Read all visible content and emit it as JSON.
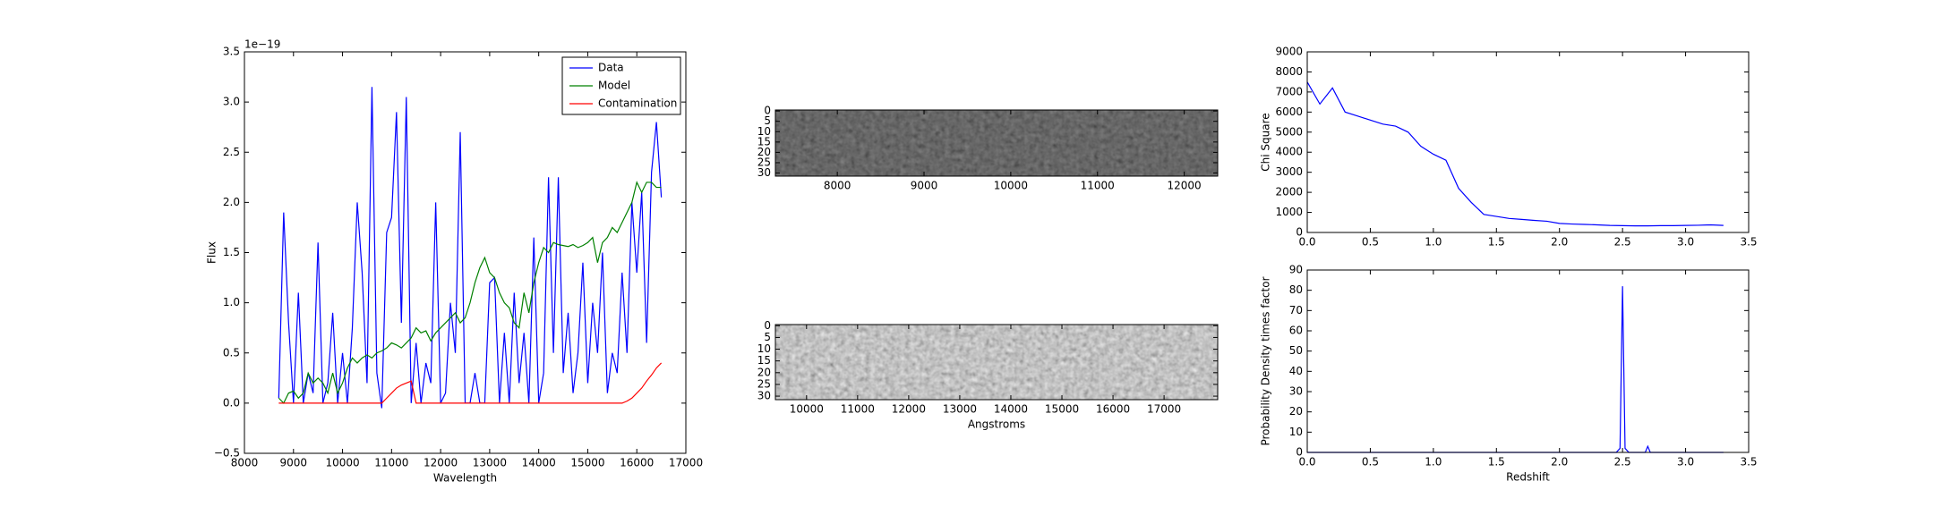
{
  "chart_data": [
    {
      "type": "line",
      "xlabel": "Wavelength",
      "ylabel": "Flux",
      "offset_text": "1e−19",
      "x": [
        8700,
        8800,
        8900,
        9000,
        9100,
        9200,
        9300,
        9400,
        9500,
        9600,
        9700,
        9800,
        9900,
        10000,
        10100,
        10200,
        10300,
        10400,
        10500,
        10600,
        10700,
        10800,
        10900,
        11000,
        11100,
        11200,
        11300,
        11400,
        11500,
        11600,
        11700,
        11800,
        11900,
        12000,
        12100,
        12200,
        12300,
        12400,
        12500,
        12600,
        12700,
        12800,
        12900,
        13000,
        13100,
        13200,
        13300,
        13400,
        13500,
        13600,
        13700,
        13800,
        13900,
        14000,
        14100,
        14200,
        14300,
        14400,
        14500,
        14600,
        14700,
        14800,
        14900,
        15000,
        15100,
        15200,
        15300,
        15400,
        15500,
        15600,
        15700,
        15800,
        15900,
        16000,
        16100,
        16200,
        16300,
        16400,
        16500
      ],
      "series": [
        {
          "name": "Data",
          "color": "#0000ff",
          "values": [
            0.05,
            1.9,
            0.8,
            0.0,
            1.1,
            0.0,
            0.3,
            0.1,
            1.6,
            0.0,
            0.2,
            0.9,
            0.0,
            0.5,
            0.0,
            0.75,
            2.0,
            1.3,
            0.2,
            3.15,
            0.3,
            -0.05,
            1.7,
            1.85,
            2.9,
            0.8,
            3.05,
            0.0,
            0.6,
            0.0,
            0.4,
            0.2,
            2.0,
            0.0,
            0.1,
            1.0,
            0.5,
            2.7,
            0.0,
            0.0,
            0.3,
            0.0,
            0.0,
            1.2,
            1.25,
            0.0,
            0.7,
            0.0,
            1.1,
            0.2,
            0.7,
            0.0,
            1.65,
            0.0,
            0.3,
            2.25,
            0.5,
            2.25,
            0.3,
            0.9,
            0.1,
            0.5,
            1.4,
            0.2,
            1.0,
            0.5,
            1.5,
            0.1,
            0.5,
            0.3,
            1.3,
            0.5,
            2.0,
            1.3,
            2.1,
            0.6,
            2.3,
            2.8,
            2.05
          ]
        },
        {
          "name": "Model",
          "color": "#008000",
          "values": [
            0.05,
            0.0,
            0.1,
            0.12,
            0.05,
            0.1,
            0.3,
            0.2,
            0.25,
            0.2,
            0.1,
            0.3,
            0.1,
            0.2,
            0.35,
            0.45,
            0.4,
            0.45,
            0.48,
            0.45,
            0.5,
            0.52,
            0.55,
            0.6,
            0.58,
            0.55,
            0.6,
            0.65,
            0.75,
            0.7,
            0.72,
            0.62,
            0.7,
            0.75,
            0.8,
            0.85,
            0.9,
            0.8,
            0.85,
            1.0,
            1.2,
            1.35,
            1.45,
            1.3,
            1.25,
            1.1,
            1.0,
            0.95,
            0.8,
            0.75,
            1.1,
            0.9,
            1.2,
            1.4,
            1.55,
            1.5,
            1.6,
            1.58,
            1.57,
            1.56,
            1.58,
            1.55,
            1.57,
            1.6,
            1.65,
            1.4,
            1.6,
            1.65,
            1.75,
            1.7,
            1.8,
            1.9,
            2.0,
            2.2,
            2.1,
            2.2,
            2.2,
            2.15,
            2.15
          ]
        },
        {
          "name": "Contamination",
          "color": "#ff0000",
          "values": [
            0,
            0,
            0,
            0,
            0,
            0,
            0,
            0,
            0,
            0,
            0,
            0,
            0,
            0,
            0,
            0,
            0,
            0,
            0,
            0,
            0,
            0,
            0.05,
            0.1,
            0.15,
            0.18,
            0.2,
            0.22,
            0,
            0,
            0,
            0,
            0,
            0,
            0,
            0,
            0,
            0,
            0,
            0,
            0,
            0,
            0,
            0,
            0,
            0,
            0,
            0,
            0,
            0,
            0,
            0,
            0,
            0,
            0,
            0,
            0,
            0,
            0,
            0,
            0,
            0,
            0,
            0,
            0,
            0,
            0,
            0,
            0,
            0,
            0,
            0.02,
            0.05,
            0.1,
            0.15,
            0.22,
            0.28,
            0.35,
            0.4
          ]
        }
      ],
      "xlim": [
        8000,
        17000
      ],
      "xticks": [
        8000,
        9000,
        10000,
        11000,
        12000,
        13000,
        14000,
        15000,
        16000,
        17000
      ],
      "ylim": [
        -0.5,
        3.5
      ],
      "yticks": [
        {
          "value": -0.5,
          "label": "−0.5"
        },
        {
          "value": 0,
          "label": "0.0"
        },
        0.5,
        {
          "value": 1,
          "label": "1.0"
        },
        1.5,
        {
          "value": 2,
          "label": "2.0"
        },
        2.5,
        {
          "value": 3,
          "label": "3.0"
        },
        3.5
      ],
      "legend": "upper right"
    },
    {
      "type": "image",
      "xlim": [
        7286,
        12386
      ],
      "xticks": [
        8000,
        9000,
        10000,
        11000,
        12000
      ],
      "ylim": [
        31.5,
        -0.5
      ],
      "yticks": [
        0,
        5,
        10,
        15,
        20,
        25,
        30
      ],
      "shade": "dark"
    },
    {
      "type": "image",
      "xlabel": "Angstroms",
      "xlim": [
        9390,
        18050
      ],
      "xticks": [
        10000,
        11000,
        12000,
        13000,
        14000,
        15000,
        16000,
        17000
      ],
      "ylim": [
        31.5,
        -0.5
      ],
      "yticks": [
        0,
        5,
        10,
        15,
        20,
        25,
        30
      ],
      "shade": "light"
    },
    {
      "type": "line",
      "ylabel": "Chi Square",
      "x": [
        0,
        0.1,
        0.2,
        0.3,
        0.4,
        0.5,
        0.6,
        0.7,
        0.8,
        0.9,
        1.0,
        1.1,
        1.2,
        1.3,
        1.4,
        1.5,
        1.6,
        1.7,
        1.8,
        1.9,
        2.0,
        2.1,
        2.2,
        2.3,
        2.4,
        2.5,
        2.6,
        2.7,
        2.8,
        2.9,
        3.0,
        3.1,
        3.2,
        3.3
      ],
      "series": [
        {
          "name": "Chi Square",
          "color": "#0000ff",
          "values": [
            7500,
            6400,
            7200,
            6000,
            5800,
            5600,
            5400,
            5300,
            5000,
            4300,
            3900,
            3600,
            2200,
            1500,
            900,
            800,
            700,
            650,
            600,
            560,
            450,
            420,
            400,
            380,
            350,
            340,
            330,
            330,
            340,
            340,
            350,
            360,
            380,
            350
          ]
        }
      ],
      "xlim": [
        0,
        3.5
      ],
      "xticks": [
        {
          "value": 0,
          "label": "0.0"
        },
        0.5,
        {
          "value": 1,
          "label": "1.0"
        },
        1.5,
        {
          "value": 2,
          "label": "2.0"
        },
        2.5,
        {
          "value": 3,
          "label": "3.0"
        },
        3.5
      ],
      "ylim": [
        0,
        9000
      ],
      "yticks": [
        0,
        1000,
        2000,
        3000,
        4000,
        5000,
        6000,
        7000,
        8000,
        9000
      ]
    },
    {
      "type": "line",
      "xlabel": "Redshift",
      "ylabel": "Probability Density times factor",
      "x": [
        0,
        0.5,
        1.0,
        1.5,
        2.0,
        2.45,
        2.48,
        2.5,
        2.52,
        2.55,
        2.68,
        2.7,
        2.72,
        3.0,
        3.3
      ],
      "series": [
        {
          "name": "Probability",
          "color": "#0000ff",
          "values": [
            0,
            0,
            0,
            0,
            0,
            0,
            2,
            82,
            2,
            0,
            0,
            3,
            0,
            0,
            0
          ]
        }
      ],
      "xlim": [
        0,
        3.5
      ],
      "xticks": [
        {
          "value": 0,
          "label": "0.0"
        },
        0.5,
        {
          "value": 1,
          "label": "1.0"
        },
        1.5,
        {
          "value": 2,
          "label": "2.0"
        },
        2.5,
        {
          "value": 3,
          "label": "3.0"
        },
        3.5
      ],
      "ylim": [
        0,
        90
      ],
      "yticks": [
        0,
        10,
        20,
        30,
        40,
        50,
        60,
        70,
        80,
        90
      ]
    }
  ]
}
